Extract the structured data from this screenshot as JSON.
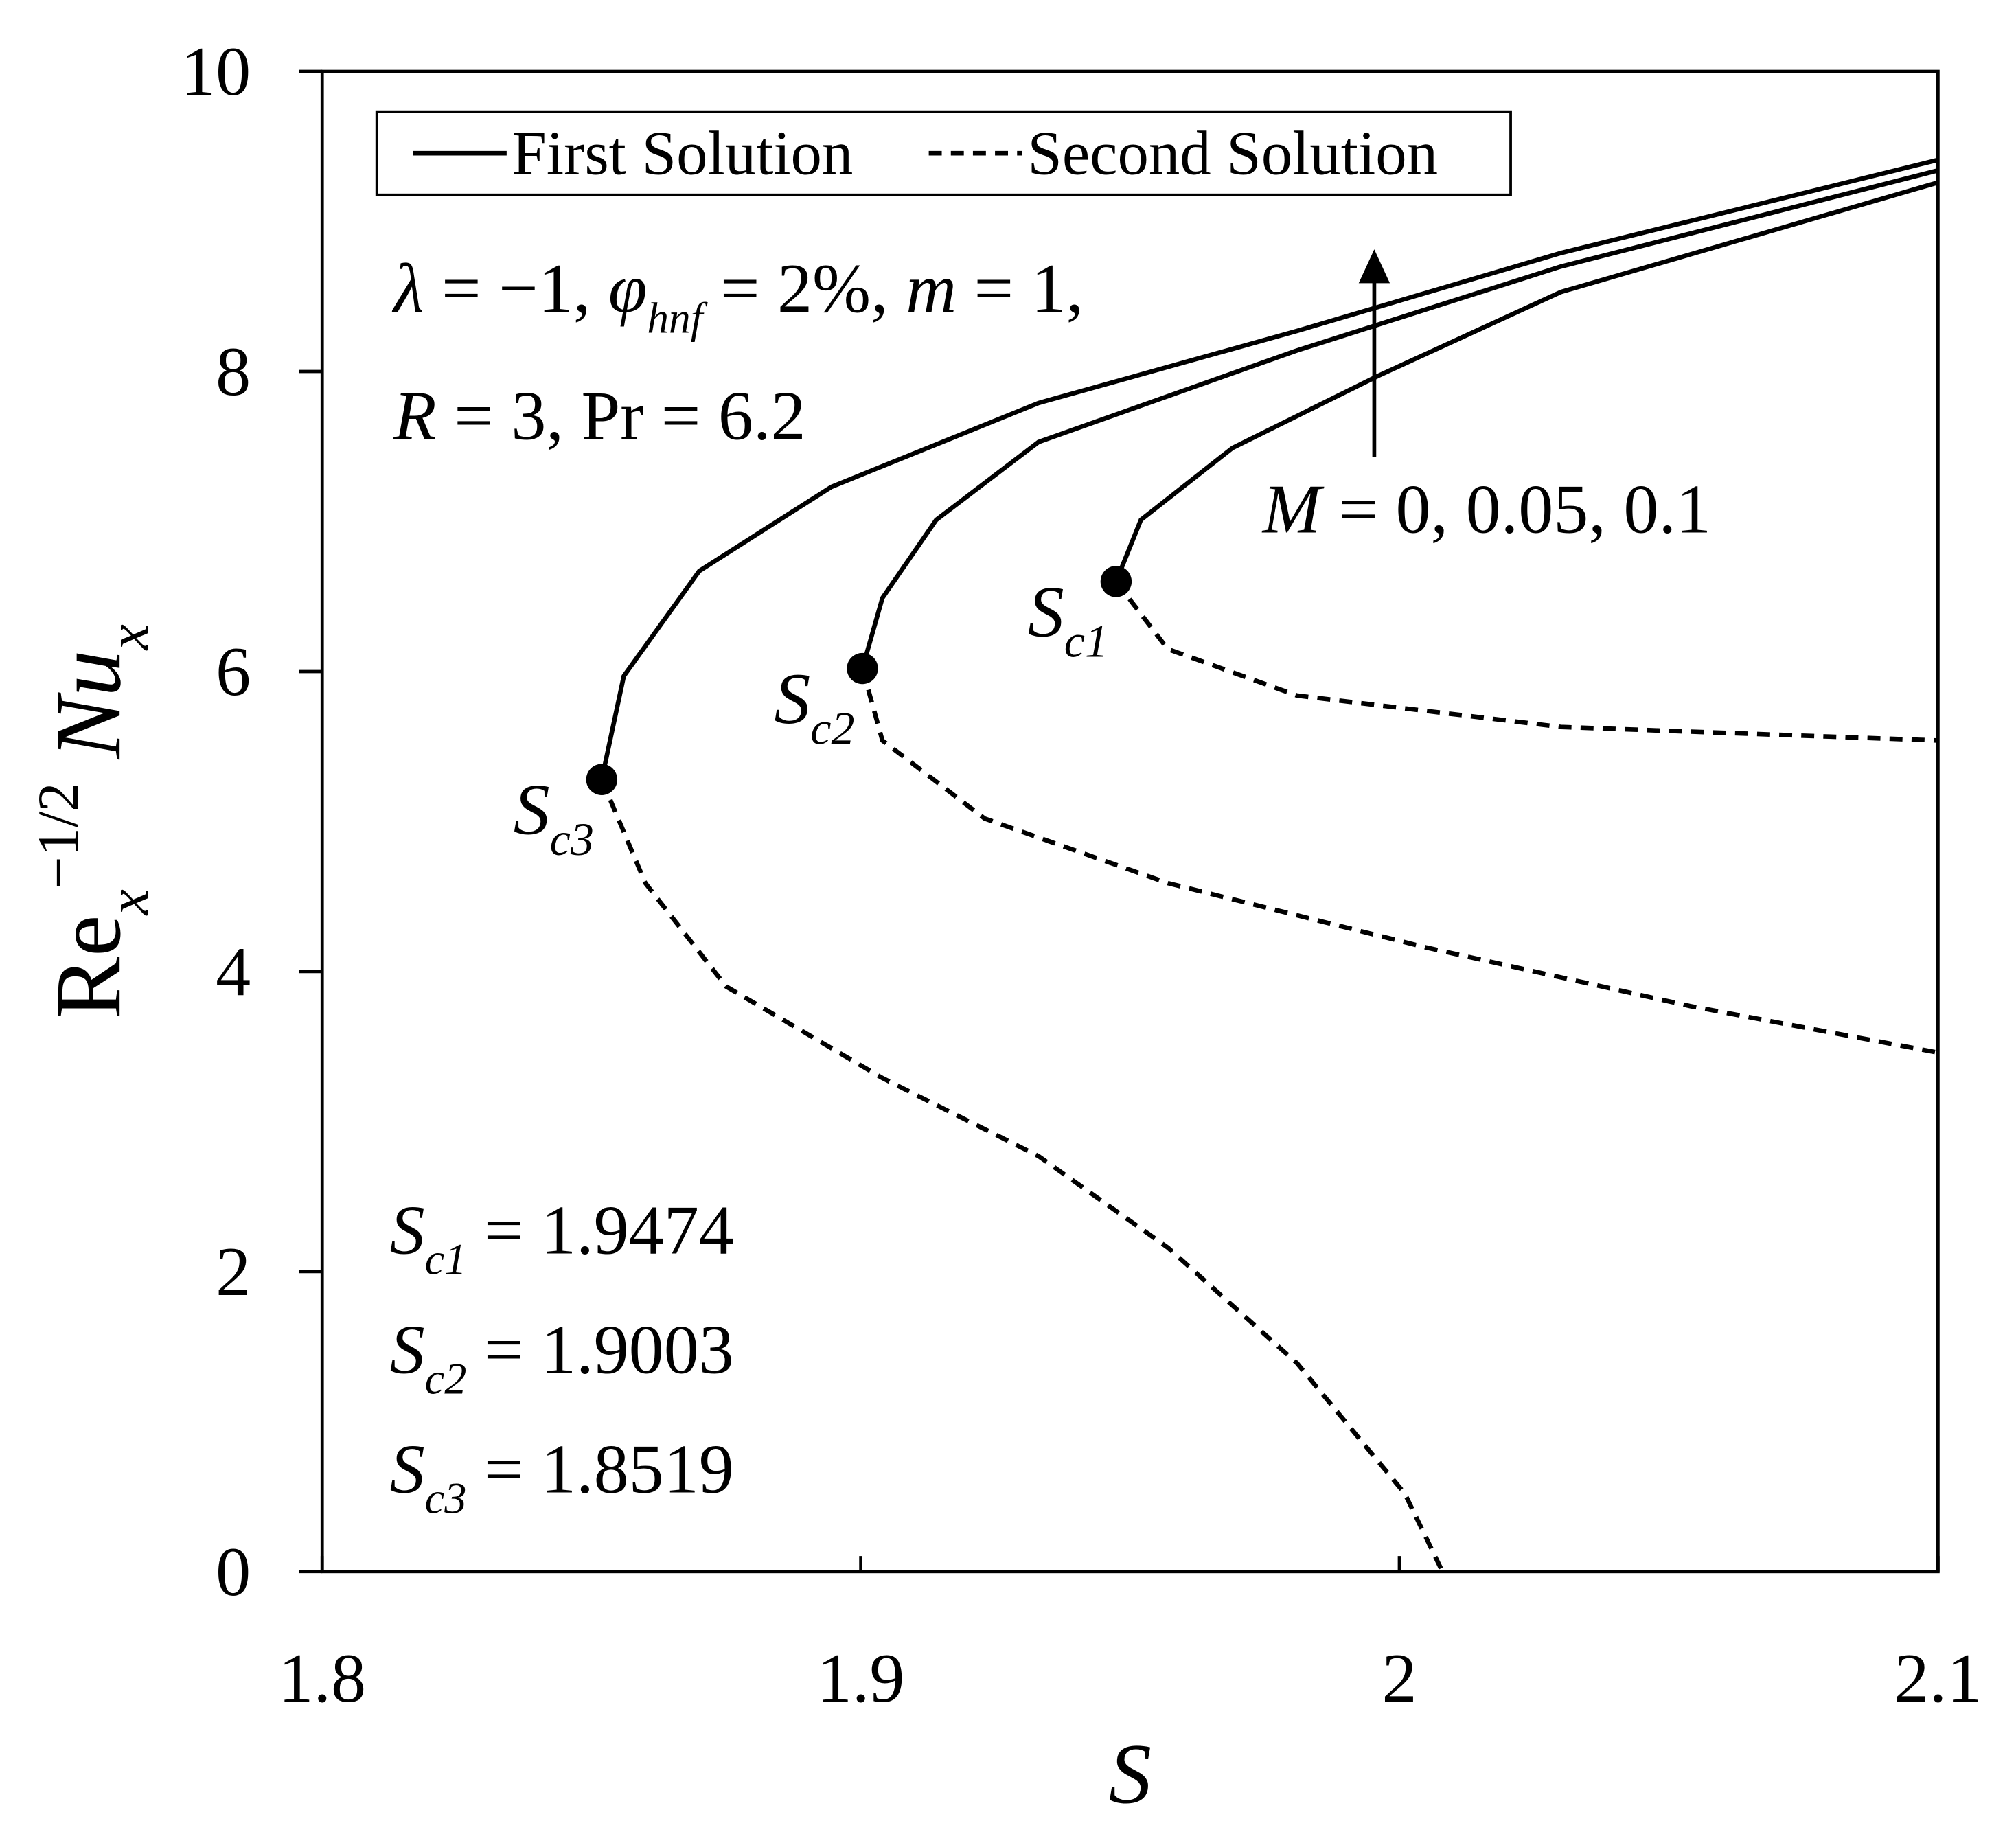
{
  "chart_data": {
    "type": "line",
    "xlim": [
      1.8,
      2.1
    ],
    "ylim": [
      0,
      10
    ],
    "xticks": [
      1.8,
      1.9,
      2,
      2.1
    ],
    "yticks": [
      0,
      2,
      4,
      6,
      8,
      10
    ],
    "x_label": {
      "parts": [
        {
          "t": "S",
          "i": true
        }
      ]
    },
    "y_label": {
      "parts": [
        {
          "t": "Re"
        },
        {
          "t": "x",
          "i": true,
          "sub": true
        },
        {
          "t": "−1/2",
          "sup": true
        },
        {
          "t": " Nu",
          "i": true
        },
        {
          "t": "x",
          "i": true,
          "sub": true
        }
      ]
    },
    "series": [
      {
        "name": "First Solution",
        "color": "#000000",
        "dash": false,
        "x": [
          1.8519,
          1.856,
          1.87,
          1.8945,
          1.933,
          1.981,
          2.03,
          2.1
        ],
        "y": [
          5.28,
          5.97,
          6.67,
          7.23,
          7.79,
          8.27,
          8.79,
          9.41
        ]
      },
      {
        "name": "First Solution",
        "color": "#000000",
        "dash": false,
        "x": [
          1.9003,
          1.904,
          1.914,
          1.933,
          1.981,
          2.03,
          2.1
        ],
        "y": [
          6.02,
          6.49,
          7.01,
          7.53,
          8.14,
          8.7,
          9.34
        ]
      },
      {
        "name": "First Solution",
        "color": "#000000",
        "dash": false,
        "x": [
          1.9474,
          1.952,
          1.969,
          1.996,
          2.03,
          2.1
        ],
        "y": [
          6.6,
          7.01,
          7.49,
          7.97,
          8.53,
          9.26
        ]
      },
      {
        "name": "Second Solution",
        "color": "#000000",
        "dash": true,
        "x": [
          1.8519,
          1.86,
          1.875,
          1.904,
          1.933,
          1.957,
          1.981,
          2.001,
          2.008
        ],
        "y": [
          5.28,
          4.59,
          3.9,
          3.29,
          2.77,
          2.16,
          1.39,
          0.52,
          0
        ]
      },
      {
        "name": "Second Solution",
        "color": "#000000",
        "dash": true,
        "x": [
          1.9003,
          1.904,
          1.923,
          1.957,
          2.005,
          2.054,
          2.1
        ],
        "y": [
          6.02,
          5.54,
          5.02,
          4.59,
          4.16,
          3.77,
          3.46
        ]
      },
      {
        "name": "Second Solution",
        "color": "#000000",
        "dash": true,
        "x": [
          1.9474,
          1.957,
          1.981,
          2.03,
          2.1
        ],
        "y": [
          6.6,
          6.15,
          5.84,
          5.63,
          5.54
        ]
      }
    ],
    "critical_points": [
      {
        "symbol": "S",
        "sub": "c1",
        "relation": " = ",
        "x": 1.9474,
        "y": 6.6
      },
      {
        "symbol": "S",
        "sub": "c2",
        "relation": " = ",
        "x": 1.9003,
        "y": 6.02
      },
      {
        "symbol": "S",
        "sub": "c3",
        "relation": " = ",
        "x": 1.8519,
        "y": 5.28
      }
    ],
    "annotations": [
      {
        "parts": [
          {
            "t": "λ",
            "i": true
          },
          {
            "t": " = −1, "
          },
          {
            "t": "φ",
            "i": true
          },
          {
            "t": "hnf",
            "i": true,
            "sub": true
          },
          {
            "t": " = 2%, "
          },
          {
            "t": "m",
            "i": true
          },
          {
            "t": " = 1,"
          }
        ]
      },
      {
        "parts": [
          {
            "t": "R",
            "i": true
          },
          {
            "t": " = 3, Pr = 6.2"
          }
        ]
      },
      {
        "parts": [
          {
            "t": "M",
            "i": true
          },
          {
            "t": " = 0, 0.05, 0.1"
          }
        ]
      }
    ]
  }
}
